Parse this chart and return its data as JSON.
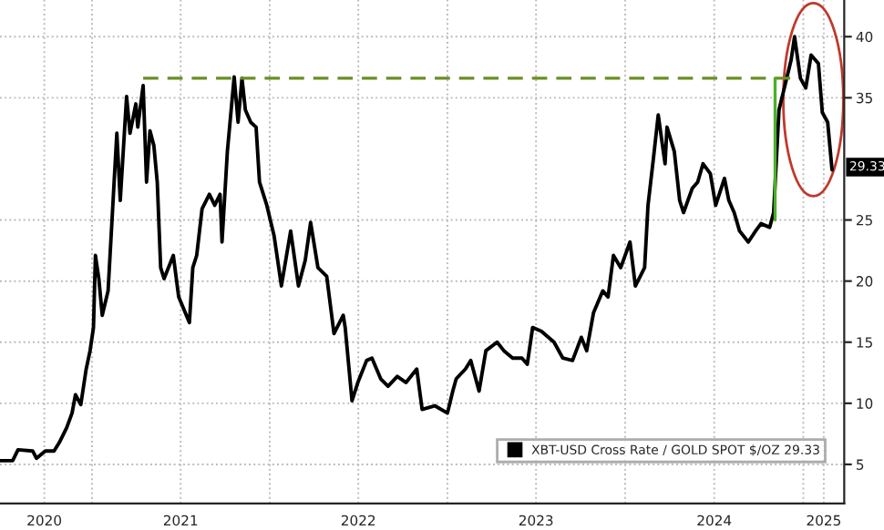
{
  "chart_data": {
    "type": "line",
    "x": [
      "2020-06-26",
      "2020-07-22",
      "2020-08-02",
      "2020-09-01",
      "2020-09-09",
      "2020-09-27",
      "2020-10-15",
      "2020-10-26",
      "2020-11-10",
      "2020-11-21",
      "2020-11-28",
      "2020-12-09",
      "2020-12-20",
      "2020-12-28",
      "2021-01-04",
      "2021-01-08",
      "2021-01-15",
      "2021-01-22",
      "2021-02-03",
      "2021-02-14",
      "2021-02-21",
      "2021-02-28",
      "2021-03-13",
      "2021-03-20",
      "2021-04-01",
      "2021-04-05",
      "2021-04-16",
      "2021-04-23",
      "2021-04-30",
      "2021-05-08",
      "2021-05-15",
      "2021-05-22",
      "2021-05-29",
      "2021-06-17",
      "2021-06-28",
      "2021-07-20",
      "2021-07-27",
      "2021-08-04",
      "2021-08-15",
      "2021-08-30",
      "2021-09-10",
      "2021-09-21",
      "2021-09-25",
      "2021-10-06",
      "2021-10-20",
      "2021-10-28",
      "2021-11-05",
      "2021-11-12",
      "2021-11-23",
      "2021-12-04",
      "2021-12-11",
      "2021-12-26",
      "2022-01-10",
      "2022-01-25",
      "2022-02-13",
      "2022-03-01",
      "2022-03-15",
      "2022-03-26",
      "2022-04-10",
      "2022-04-28",
      "2022-05-13",
      "2022-06-01",
      "2022-06-05",
      "2022-06-19",
      "2022-07-01",
      "2022-07-19",
      "2022-07-30",
      "2022-08-17",
      "2022-09-01",
      "2022-09-20",
      "2022-10-08",
      "2022-10-30",
      "2022-11-10",
      "2022-12-06",
      "2023-01-01",
      "2023-01-12",
      "2023-01-19",
      "2023-02-07",
      "2023-02-18",
      "2023-03-07",
      "2023-03-21",
      "2023-04-13",
      "2023-04-27",
      "2023-05-15",
      "2023-06-03",
      "2023-06-14",
      "2023-06-25",
      "2023-07-13",
      "2023-08-08",
      "2023-08-26",
      "2023-09-15",
      "2023-10-03",
      "2023-10-14",
      "2023-10-28",
      "2023-11-16",
      "2023-11-27",
      "2023-12-08",
      "2023-12-23",
      "2024-01-11",
      "2024-01-22",
      "2024-02-10",
      "2024-02-17",
      "2024-02-28",
      "2024-03-09",
      "2024-03-23",
      "2024-03-27",
      "2024-04-11",
      "2024-04-22",
      "2024-04-30",
      "2024-05-18",
      "2024-05-29",
      "2024-06-09",
      "2024-06-24",
      "2024-07-05",
      "2024-07-23",
      "2024-08-01",
      "2024-08-12",
      "2024-08-23",
      "2024-09-10",
      "2024-09-25",
      "2024-10-06",
      "2024-10-24",
      "2024-11-01",
      "2024-11-12",
      "2024-11-23",
      "2024-12-07",
      "2024-12-14",
      "2024-12-26",
      "2025-01-06",
      "2025-01-17",
      "2025-02-01",
      "2025-02-09",
      "2025-02-20",
      "2025-03-01"
    ],
    "series": [
      {
        "name": "XBT-USD Cross Rate / GOLD SPOT $/OZ 29.33",
        "color": "#000000",
        "values": [
          5.3,
          5.3,
          6.2,
          6.1,
          5.5,
          6.1,
          6.1,
          6.8,
          8.0,
          9.2,
          10.7,
          9.9,
          12.8,
          14.3,
          16.2,
          22.1,
          20.2,
          17.2,
          19.2,
          27.1,
          32.1,
          26.6,
          35.1,
          32.1,
          34.5,
          32.6,
          36.0,
          28.1,
          32.3,
          31.1,
          28.1,
          21.1,
          20.2,
          22.1,
          18.7,
          16.6,
          21.1,
          22.1,
          25.9,
          27.1,
          26.2,
          27.1,
          23.2,
          30.6,
          36.7,
          33.0,
          36.6,
          34.0,
          33.0,
          32.6,
          28.1,
          26.2,
          23.7,
          19.6,
          24.1,
          19.6,
          21.7,
          24.8,
          21.1,
          20.4,
          15.7,
          17.2,
          16.2,
          10.2,
          11.7,
          13.5,
          13.7,
          12.0,
          11.4,
          12.2,
          11.7,
          12.8,
          9.5,
          9.8,
          9.2,
          11.0,
          12.0,
          12.8,
          13.5,
          11.0,
          14.3,
          15.0,
          14.3,
          13.7,
          13.7,
          13.2,
          16.2,
          15.9,
          15.0,
          13.7,
          13.5,
          15.4,
          14.3,
          17.4,
          19.2,
          18.7,
          22.1,
          21.1,
          23.2,
          19.6,
          21.1,
          26.2,
          30.0,
          33.6,
          29.6,
          32.6,
          30.6,
          26.6,
          25.6,
          27.6,
          28.1,
          29.6,
          28.8,
          26.2,
          28.4,
          26.6,
          25.6,
          24.1,
          23.2,
          24.1,
          24.7,
          24.4,
          25.6,
          34.0,
          35.8,
          38.1,
          40.0,
          36.6,
          35.8,
          38.5,
          37.8,
          33.8,
          33.0,
          29.1
        ]
      },
      {
        "color": "#6b8e23",
        "line_style": "dashed",
        "x": [
          "2021-04-16",
          "2024-12-07"
        ],
        "values": [
          36.6,
          36.6
        ]
      },
      {
        "color": "#4caf28",
        "x": [
          "2024-11-04",
          "2024-11-04"
        ],
        "values": [
          36.6,
          25.0
        ]
      }
    ],
    "xlim": [
      "2020-06-26",
      "2025-03-26"
    ],
    "xticks": [
      {
        "value": "2020-09-25",
        "label": "2020"
      },
      {
        "value": "2021-01-01",
        "label": null
      },
      {
        "value": "2021-07-02",
        "label": "2021"
      },
      {
        "value": "2022-01-01",
        "label": null
      },
      {
        "value": "2022-07-02",
        "label": "2022"
      },
      {
        "value": "2023-01-01",
        "label": null
      },
      {
        "value": "2023-07-02",
        "label": "2023"
      },
      {
        "value": "2024-01-01",
        "label": null
      },
      {
        "value": "2024-07-02",
        "label": "2024"
      },
      {
        "value": "2025-01-01",
        "label": null
      },
      {
        "value": "2025-02-12",
        "label": "2025"
      }
    ],
    "ylim": [
      1.8,
      43
    ],
    "yticks": [
      5,
      10,
      15,
      20,
      25,
      35,
      40
    ],
    "grid": true,
    "legend": "bottom right",
    "annotations": [
      {
        "text": "29.33",
        "y": 29.33
      }
    ]
  }
}
